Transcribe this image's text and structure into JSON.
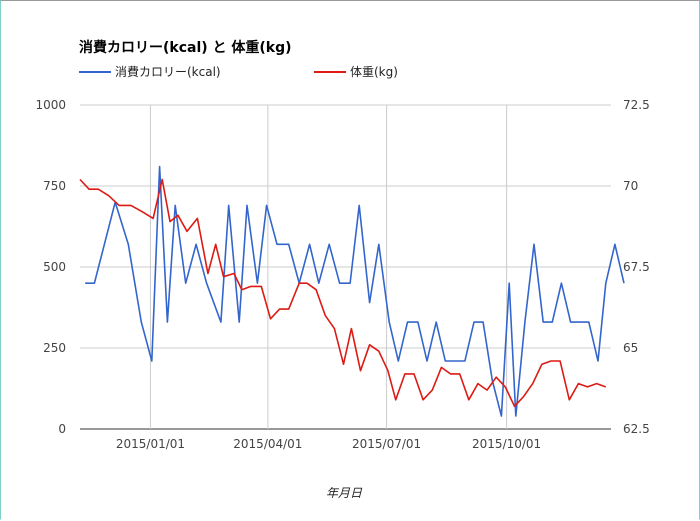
{
  "chart_data": {
    "type": "line",
    "title": "消費カロリー(kcal) と 体重(kg)",
    "xlabel": "年月日",
    "x_ticks": [
      "2015/01/01",
      "2015/04/01",
      "2015/07/01",
      "2015/10/01"
    ],
    "x_range": [
      "2014-11-08",
      "2015-12-20"
    ],
    "y_left": {
      "lim": [
        0,
        1000
      ],
      "ticks": [
        "0",
        "250",
        "500",
        "750",
        "1000"
      ]
    },
    "y_right": {
      "lim": [
        62.5,
        72.5
      ],
      "ticks": [
        "62.5",
        "65",
        "67.5",
        "70",
        "72.5"
      ]
    },
    "grid": true,
    "legend_position": "top-left",
    "series": [
      {
        "name": "消費カロリー(kcal)",
        "axis": "left",
        "color": "#3366cc",
        "points": [
          [
            "2014-11-12",
            450
          ],
          [
            "2014-11-19",
            450
          ],
          [
            "2014-12-05",
            700
          ],
          [
            "2014-12-15",
            570
          ],
          [
            "2014-12-25",
            330
          ],
          [
            "2015-01-02",
            210
          ],
          [
            "2015-01-08",
            810
          ],
          [
            "2015-01-14",
            330
          ],
          [
            "2015-01-20",
            690
          ],
          [
            "2015-01-28",
            450
          ],
          [
            "2015-02-05",
            570
          ],
          [
            "2015-02-13",
            450
          ],
          [
            "2015-02-24",
            330
          ],
          [
            "2015-03-02",
            690
          ],
          [
            "2015-03-10",
            330
          ],
          [
            "2015-03-16",
            690
          ],
          [
            "2015-03-24",
            450
          ],
          [
            "2015-03-31",
            690
          ],
          [
            "2015-04-08",
            570
          ],
          [
            "2015-04-17",
            570
          ],
          [
            "2015-04-25",
            450
          ],
          [
            "2015-05-03",
            570
          ],
          [
            "2015-05-10",
            450
          ],
          [
            "2015-05-18",
            570
          ],
          [
            "2015-05-26",
            450
          ],
          [
            "2015-06-03",
            450
          ],
          [
            "2015-06-10",
            690
          ],
          [
            "2015-06-18",
            390
          ],
          [
            "2015-06-25",
            570
          ],
          [
            "2015-07-03",
            330
          ],
          [
            "2015-07-10",
            210
          ],
          [
            "2015-07-17",
            330
          ],
          [
            "2015-07-25",
            330
          ],
          [
            "2015-08-01",
            210
          ],
          [
            "2015-08-08",
            330
          ],
          [
            "2015-08-15",
            210
          ],
          [
            "2015-08-22",
            210
          ],
          [
            "2015-08-30",
            210
          ],
          [
            "2015-09-06",
            330
          ],
          [
            "2015-09-13",
            330
          ],
          [
            "2015-09-20",
            150
          ],
          [
            "2015-09-27",
            40
          ],
          [
            "2015-10-03",
            450
          ],
          [
            "2015-10-08",
            40
          ],
          [
            "2015-10-15",
            330
          ],
          [
            "2015-10-22",
            570
          ],
          [
            "2015-10-29",
            330
          ],
          [
            "2015-11-05",
            330
          ],
          [
            "2015-11-12",
            450
          ],
          [
            "2015-11-19",
            330
          ],
          [
            "2015-11-26",
            330
          ],
          [
            "2015-12-03",
            330
          ],
          [
            "2015-12-10",
            210
          ],
          [
            "2015-12-16",
            450
          ],
          [
            "2015-12-23",
            570
          ],
          [
            "2015-12-30",
            450
          ]
        ]
      },
      {
        "name": "体重(kg)",
        "axis": "right",
        "color": "#dc1b14",
        "points": [
          [
            "2014-11-08",
            70.2
          ],
          [
            "2014-11-15",
            69.9
          ],
          [
            "2014-11-22",
            69.9
          ],
          [
            "2014-11-30",
            69.7
          ],
          [
            "2014-12-08",
            69.4
          ],
          [
            "2014-12-17",
            69.4
          ],
          [
            "2014-12-26",
            69.2
          ],
          [
            "2015-01-03",
            69.0
          ],
          [
            "2015-01-10",
            70.2
          ],
          [
            "2015-01-16",
            68.9
          ],
          [
            "2015-01-22",
            69.1
          ],
          [
            "2015-01-29",
            68.6
          ],
          [
            "2015-02-06",
            69.0
          ],
          [
            "2015-02-14",
            67.3
          ],
          [
            "2015-02-20",
            68.2
          ],
          [
            "2015-02-26",
            67.2
          ],
          [
            "2015-03-06",
            67.3
          ],
          [
            "2015-03-12",
            66.8
          ],
          [
            "2015-03-19",
            66.9
          ],
          [
            "2015-03-27",
            66.9
          ],
          [
            "2015-04-03",
            65.9
          ],
          [
            "2015-04-10",
            66.2
          ],
          [
            "2015-04-17",
            66.2
          ],
          [
            "2015-04-25",
            67.0
          ],
          [
            "2015-05-01",
            67.0
          ],
          [
            "2015-05-08",
            66.8
          ],
          [
            "2015-05-15",
            66.0
          ],
          [
            "2015-05-22",
            65.6
          ],
          [
            "2015-05-29",
            64.5
          ],
          [
            "2015-06-04",
            65.6
          ],
          [
            "2015-06-11",
            64.3
          ],
          [
            "2015-06-18",
            65.1
          ],
          [
            "2015-06-25",
            64.9
          ],
          [
            "2015-07-02",
            64.3
          ],
          [
            "2015-07-08",
            63.4
          ],
          [
            "2015-07-15",
            64.2
          ],
          [
            "2015-07-22",
            64.2
          ],
          [
            "2015-07-29",
            63.4
          ],
          [
            "2015-08-05",
            63.7
          ],
          [
            "2015-08-12",
            64.4
          ],
          [
            "2015-08-19",
            64.2
          ],
          [
            "2015-08-26",
            64.2
          ],
          [
            "2015-09-02",
            63.4
          ],
          [
            "2015-09-09",
            63.9
          ],
          [
            "2015-09-16",
            63.7
          ],
          [
            "2015-09-23",
            64.1
          ],
          [
            "2015-09-30",
            63.8
          ],
          [
            "2015-10-07",
            63.2
          ],
          [
            "2015-10-14",
            63.5
          ],
          [
            "2015-10-21",
            63.9
          ],
          [
            "2015-10-28",
            64.5
          ],
          [
            "2015-11-04",
            64.6
          ],
          [
            "2015-11-11",
            64.6
          ],
          [
            "2015-11-18",
            63.4
          ],
          [
            "2015-11-25",
            63.9
          ],
          [
            "2015-12-02",
            63.8
          ],
          [
            "2015-12-09",
            63.9
          ],
          [
            "2015-12-16",
            63.8
          ]
        ]
      }
    ]
  }
}
